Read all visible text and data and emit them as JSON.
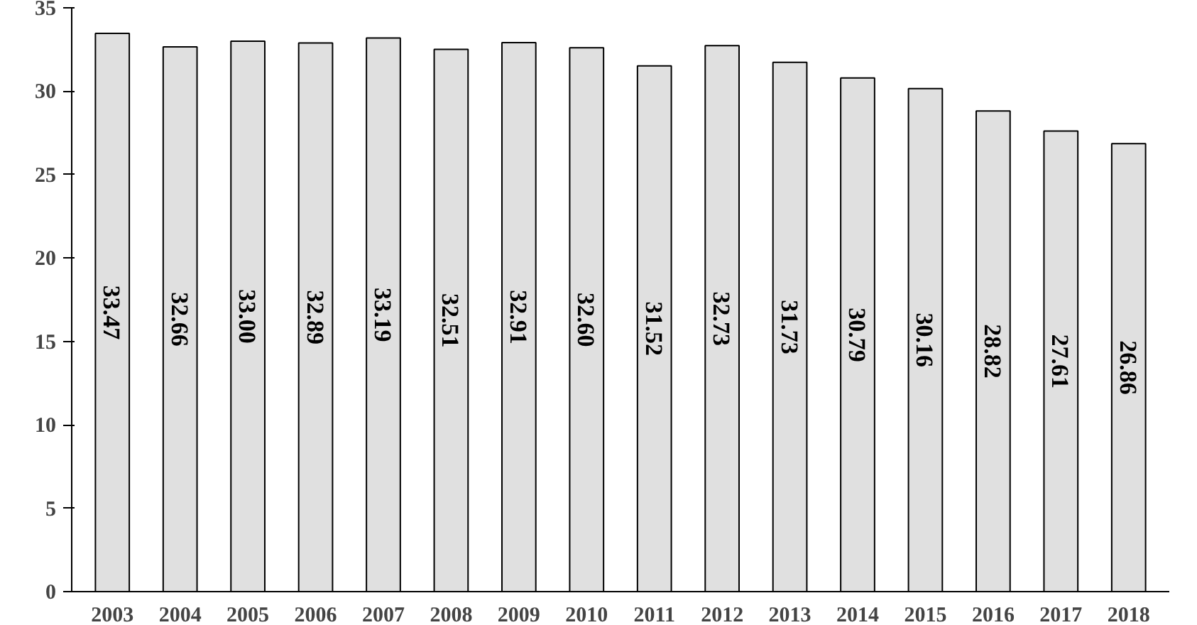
{
  "chart_data": {
    "type": "bar",
    "categories": [
      "2003",
      "2004",
      "2005",
      "2006",
      "2007",
      "2008",
      "2009",
      "2010",
      "2011",
      "2012",
      "2013",
      "2014",
      "2015",
      "2016",
      "2017",
      "2018"
    ],
    "values": [
      33.47,
      32.66,
      33.0,
      32.89,
      33.19,
      32.51,
      32.91,
      32.6,
      31.52,
      32.73,
      31.73,
      30.79,
      30.16,
      28.82,
      27.61,
      26.86
    ],
    "value_labels": [
      "33.47",
      "32.66",
      "33.00",
      "32.89",
      "33.19",
      "32.51",
      "32.91",
      "32.60",
      "31.52",
      "32.73",
      "31.73",
      "30.79",
      "30.16",
      "28.82",
      "27.61",
      "26.86"
    ],
    "color": "#e0e0e0",
    "ylim": [
      0,
      35
    ],
    "yticks": [
      0,
      5,
      10,
      15,
      20,
      25,
      30,
      35
    ],
    "grid": false
  }
}
